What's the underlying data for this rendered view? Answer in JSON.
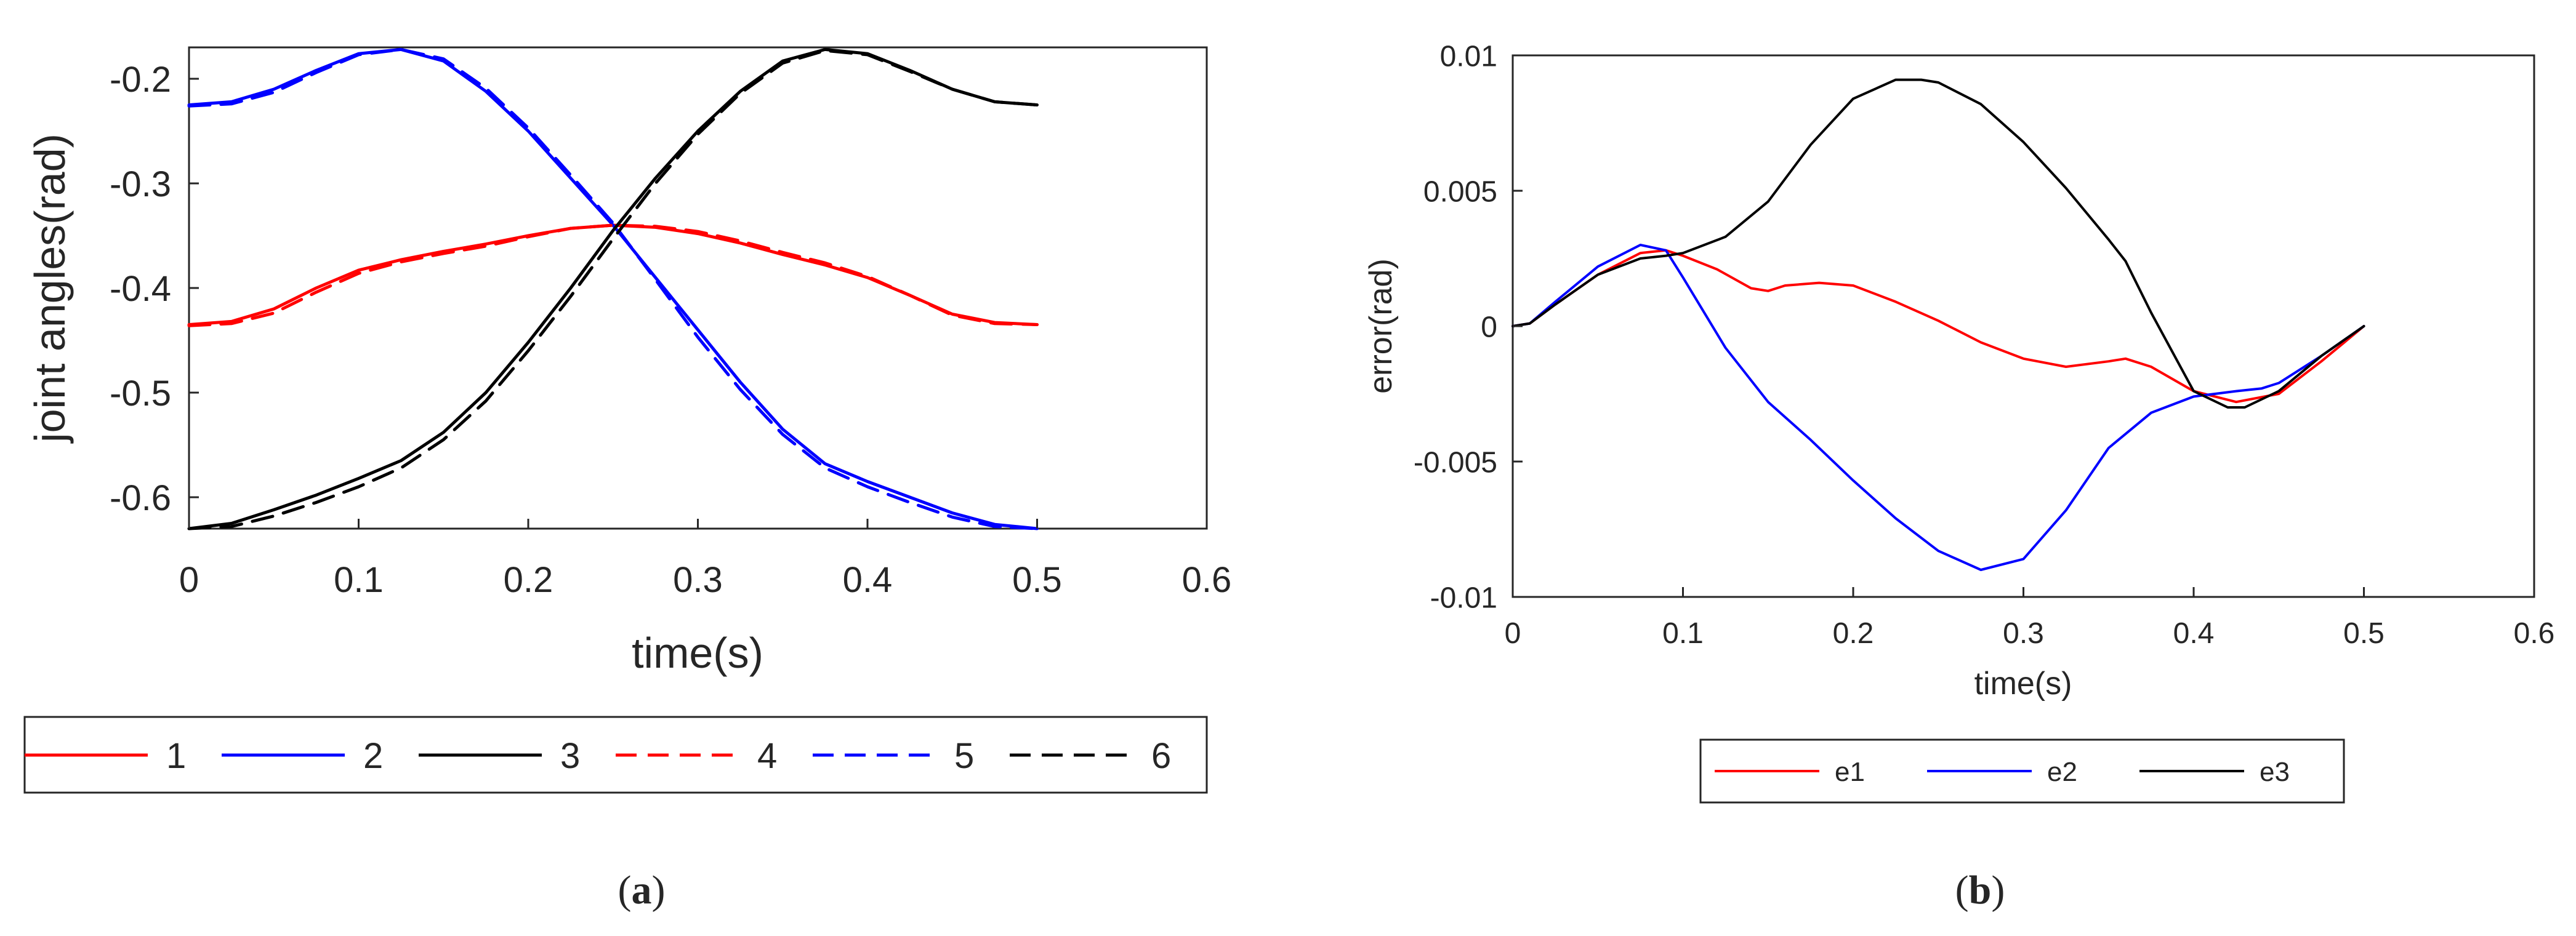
{
  "chart_data": [
    {
      "type": "line",
      "panel_label": "a",
      "title": "",
      "xlabel": "time(s)",
      "ylabel": "joint angles(rad)",
      "xlim": [
        0,
        0.6
      ],
      "ylim": [
        -0.63,
        -0.17
      ],
      "x_ticks": [
        0,
        0.1,
        0.2,
        0.3,
        0.4,
        0.5,
        0.6
      ],
      "x_tick_labels": [
        "0",
        "0.1",
        "0.2",
        "0.3",
        "0.4",
        "0.5",
        "0.6"
      ],
      "y_ticks": [
        -0.6,
        -0.5,
        -0.4,
        -0.3,
        -0.2
      ],
      "y_tick_labels": [
        "-0.6",
        "-0.5",
        "-0.4",
        "-0.3",
        "-0.2"
      ],
      "grid": false,
      "legend_position": "bottom",
      "series": [
        {
          "name": "1",
          "color": "#ff0000",
          "style": "solid",
          "x": [
            0,
            0.025,
            0.05,
            0.075,
            0.1,
            0.125,
            0.15,
            0.175,
            0.2,
            0.225,
            0.25,
            0.275,
            0.3,
            0.325,
            0.35,
            0.375,
            0.4,
            0.425,
            0.45,
            0.475,
            0.5
          ],
          "y": [
            -0.435,
            -0.432,
            -0.42,
            -0.4,
            -0.383,
            -0.373,
            -0.365,
            -0.358,
            -0.35,
            -0.343,
            -0.34,
            -0.342,
            -0.348,
            -0.357,
            -0.368,
            -0.378,
            -0.39,
            -0.407,
            -0.425,
            -0.433,
            -0.435
          ]
        },
        {
          "name": "2",
          "color": "#0000ff",
          "style": "solid",
          "x": [
            0,
            0.025,
            0.05,
            0.075,
            0.1,
            0.125,
            0.15,
            0.175,
            0.2,
            0.225,
            0.25,
            0.275,
            0.3,
            0.325,
            0.35,
            0.375,
            0.4,
            0.425,
            0.45,
            0.475,
            0.5
          ],
          "y": [
            -0.225,
            -0.222,
            -0.21,
            -0.192,
            -0.176,
            -0.172,
            -0.183,
            -0.212,
            -0.25,
            -0.295,
            -0.34,
            -0.39,
            -0.44,
            -0.49,
            -0.535,
            -0.568,
            -0.585,
            -0.6,
            -0.615,
            -0.626,
            -0.63
          ]
        },
        {
          "name": "3",
          "color": "#000000",
          "style": "solid",
          "x": [
            0,
            0.025,
            0.05,
            0.075,
            0.1,
            0.125,
            0.15,
            0.175,
            0.2,
            0.225,
            0.25,
            0.275,
            0.3,
            0.325,
            0.35,
            0.375,
            0.4,
            0.425,
            0.45,
            0.475,
            0.5
          ],
          "y": [
            -0.63,
            -0.625,
            -0.612,
            -0.598,
            -0.582,
            -0.565,
            -0.538,
            -0.5,
            -0.452,
            -0.4,
            -0.345,
            -0.295,
            -0.25,
            -0.212,
            -0.183,
            -0.172,
            -0.176,
            -0.192,
            -0.21,
            -0.222,
            -0.225
          ]
        },
        {
          "name": "4",
          "color": "#ff0000",
          "style": "dashed",
          "x": [
            0,
            0.025,
            0.05,
            0.075,
            0.1,
            0.125,
            0.15,
            0.175,
            0.2,
            0.225,
            0.25,
            0.275,
            0.3,
            0.325,
            0.35,
            0.375,
            0.4,
            0.425,
            0.45,
            0.475,
            0.5
          ],
          "y": [
            -0.436,
            -0.434,
            -0.424,
            -0.404,
            -0.386,
            -0.375,
            -0.367,
            -0.36,
            -0.351,
            -0.343,
            -0.34,
            -0.341,
            -0.346,
            -0.355,
            -0.366,
            -0.376,
            -0.389,
            -0.407,
            -0.426,
            -0.434,
            -0.435
          ]
        },
        {
          "name": "5",
          "color": "#0000ff",
          "style": "dashed",
          "x": [
            0,
            0.025,
            0.05,
            0.075,
            0.1,
            0.125,
            0.15,
            0.175,
            0.2,
            0.225,
            0.25,
            0.275,
            0.3,
            0.325,
            0.35,
            0.375,
            0.4,
            0.425,
            0.45,
            0.475,
            0.5
          ],
          "y": [
            -0.226,
            -0.224,
            -0.213,
            -0.194,
            -0.177,
            -0.172,
            -0.181,
            -0.209,
            -0.247,
            -0.292,
            -0.338,
            -0.392,
            -0.447,
            -0.497,
            -0.54,
            -0.572,
            -0.59,
            -0.605,
            -0.619,
            -0.628,
            -0.63
          ]
        },
        {
          "name": "6",
          "color": "#000000",
          "style": "dashed",
          "x": [
            0,
            0.025,
            0.05,
            0.075,
            0.1,
            0.125,
            0.15,
            0.175,
            0.2,
            0.225,
            0.25,
            0.275,
            0.3,
            0.325,
            0.35,
            0.375,
            0.4,
            0.425,
            0.45,
            0.475,
            0.5
          ],
          "y": [
            -0.63,
            -0.628,
            -0.618,
            -0.605,
            -0.59,
            -0.572,
            -0.545,
            -0.508,
            -0.46,
            -0.408,
            -0.353,
            -0.3,
            -0.253,
            -0.214,
            -0.185,
            -0.173,
            -0.177,
            -0.193,
            -0.21,
            -0.222,
            -0.225
          ]
        }
      ]
    },
    {
      "type": "line",
      "panel_label": "b",
      "title": "",
      "xlabel": "time(s)",
      "ylabel": "error(rad)",
      "xlim": [
        0,
        0.6
      ],
      "ylim": [
        -0.01,
        0.01
      ],
      "x_ticks": [
        0,
        0.1,
        0.2,
        0.3,
        0.4,
        0.5,
        0.6
      ],
      "x_tick_labels": [
        "0",
        "0.1",
        "0.2",
        "0.3",
        "0.4",
        "0.5",
        "0.6"
      ],
      "y_ticks": [
        -0.01,
        -0.005,
        0,
        0.005,
        0.01
      ],
      "y_tick_labels": [
        "-0.01",
        "-0.005",
        "0",
        "0.005",
        "0.01"
      ],
      "grid": false,
      "legend_position": "bottom",
      "series": [
        {
          "name": "e1",
          "color": "#ff0000",
          "style": "solid",
          "x": [
            0,
            0.01,
            0.025,
            0.05,
            0.075,
            0.09,
            0.1,
            0.12,
            0.14,
            0.15,
            0.16,
            0.18,
            0.2,
            0.225,
            0.25,
            0.275,
            0.3,
            0.325,
            0.35,
            0.36,
            0.375,
            0.4,
            0.425,
            0.45,
            0.475,
            0.5
          ],
          "y": [
            0,
            0.0001,
            0.0008,
            0.0019,
            0.0027,
            0.0028,
            0.0026,
            0.0021,
            0.0014,
            0.0013,
            0.0015,
            0.0016,
            0.0015,
            0.0009,
            0.0002,
            -0.0006,
            -0.0012,
            -0.0015,
            -0.0013,
            -0.0012,
            -0.0015,
            -0.0024,
            -0.0028,
            -0.0025,
            -0.0013,
            0
          ]
        },
        {
          "name": "e2",
          "color": "#0000ff",
          "style": "solid",
          "x": [
            0,
            0.01,
            0.025,
            0.05,
            0.075,
            0.09,
            0.1,
            0.125,
            0.15,
            0.175,
            0.2,
            0.225,
            0.25,
            0.275,
            0.3,
            0.325,
            0.35,
            0.375,
            0.4,
            0.425,
            0.44,
            0.45,
            0.475,
            0.5
          ],
          "y": [
            0,
            0.0001,
            0.0009,
            0.0022,
            0.003,
            0.0028,
            0.0018,
            -0.0008,
            -0.0028,
            -0.0042,
            -0.0057,
            -0.0071,
            -0.0083,
            -0.009,
            -0.0086,
            -0.0068,
            -0.0045,
            -0.0032,
            -0.0026,
            -0.0024,
            -0.0023,
            -0.0021,
            -0.0011,
            0
          ]
        },
        {
          "name": "e3",
          "color": "#000000",
          "style": "solid",
          "x": [
            0,
            0.01,
            0.025,
            0.05,
            0.075,
            0.09,
            0.1,
            0.125,
            0.15,
            0.175,
            0.2,
            0.225,
            0.24,
            0.25,
            0.275,
            0.3,
            0.325,
            0.35,
            0.36,
            0.375,
            0.4,
            0.42,
            0.43,
            0.45,
            0.475,
            0.5
          ],
          "y": [
            0,
            0.0001,
            0.0008,
            0.0019,
            0.0025,
            0.0026,
            0.0027,
            0.0033,
            0.0046,
            0.0067,
            0.0084,
            0.0091,
            0.0091,
            0.009,
            0.0082,
            0.0068,
            0.0051,
            0.0032,
            0.0024,
            0.0005,
            -0.0024,
            -0.003,
            -0.003,
            -0.0024,
            -0.0011,
            0
          ]
        }
      ]
    }
  ]
}
